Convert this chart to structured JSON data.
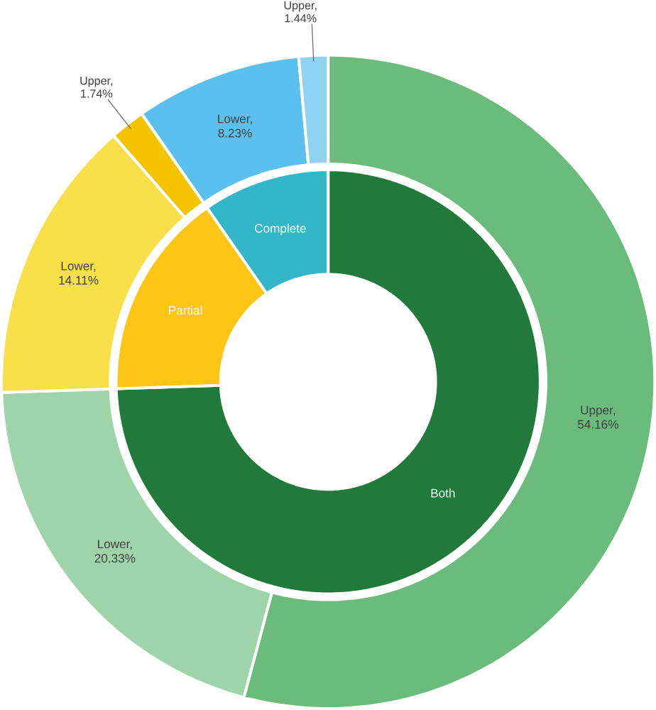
{
  "chart_data": [
    {
      "type": "donut",
      "categories": [
        "Both",
        "Partial",
        "Complete"
      ],
      "values": [
        74.49,
        15.85,
        9.67
      ],
      "colors": [
        "#217a3c",
        "#ffc514",
        "#35b5c8"
      ]
    },
    {
      "type": "donut",
      "categories": [
        null,
        null,
        null,
        null,
        null,
        null
      ],
      "values": [
        54.16,
        20.33,
        14.11,
        1.74,
        8.23,
        1.44
      ],
      "value_labels": [
        "Upper, 54.16%",
        "Lower, 20.33%",
        "Lower, 14.11%",
        "Upper, 1.74%",
        "Lower, 8.23%",
        "Upper, 1.44%"
      ],
      "colors": [
        "#6abb7c",
        "#9fd4ab",
        "#f9e04a",
        "#f5c400",
        "#5bc0ee",
        "#8fd3f3"
      ]
    }
  ]
}
